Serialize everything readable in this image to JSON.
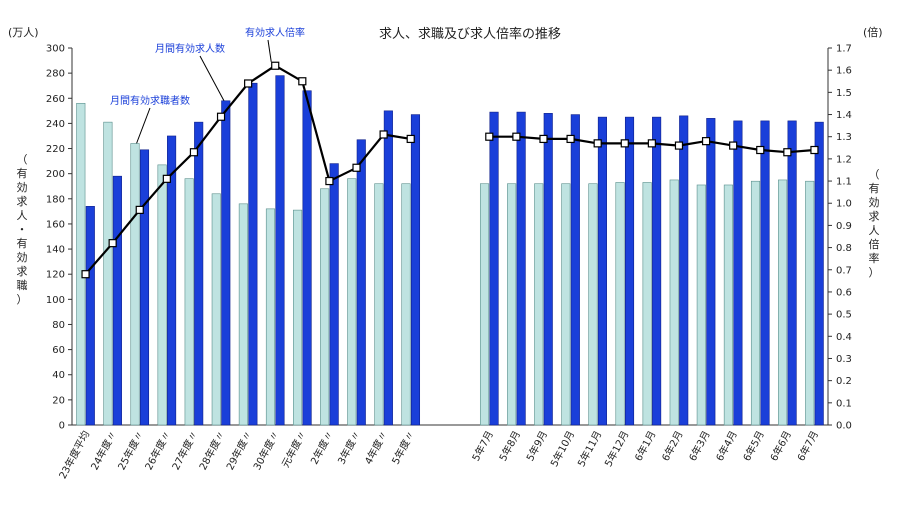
{
  "chart_data": {
    "type": "bar",
    "title": "求人、求職及び求人倍率の推移",
    "left_unit": "(万人)",
    "right_unit": "(倍)",
    "ylabel": "（有効求人・有効求職）",
    "y2label": "（有効求人倍率）",
    "ylim": [
      0,
      300
    ],
    "y_ticks": [
      0,
      20,
      40,
      60,
      80,
      100,
      120,
      140,
      160,
      180,
      200,
      220,
      240,
      260,
      280,
      300
    ],
    "y2lim": [
      0.0,
      1.7
    ],
    "y2_ticks": [
      "0.0",
      "0.1",
      "0.2",
      "0.3",
      "0.4",
      "0.5",
      "0.6",
      "0.7",
      "0.8",
      "0.9",
      "1.0",
      "1.1",
      "1.2",
      "1.3",
      "1.4",
      "1.5",
      "1.6",
      "1.7"
    ],
    "grid": false,
    "categories": [
      "23年度平均",
      "24年度〃",
      "25年度〃",
      "26年度〃",
      "27年度〃",
      "28年度〃",
      "29年度〃",
      "30年度〃",
      "元年度〃",
      "2年度〃",
      "3年度〃",
      "4年度〃",
      "5年度〃",
      "5年7月",
      "5年8月",
      "5年9月",
      "5年10月",
      "5年11月",
      "5年12月",
      "6年1月",
      "6年2月",
      "6年3月",
      "6年4月",
      "6年5月",
      "6年6月",
      "6年7月"
    ],
    "series": [
      {
        "name": "月間有効求職者数",
        "axis": "left",
        "color": "#bfe3e1",
        "values": [
          256,
          241,
          224,
          207,
          196,
          184,
          176,
          172,
          171,
          188,
          196,
          192,
          192,
          192,
          192,
          192,
          192,
          192,
          193,
          193,
          195,
          191,
          191,
          194,
          195,
          194
        ]
      },
      {
        "name": "月間有効求人数",
        "axis": "left",
        "color": "#1a3fd9",
        "values": [
          174,
          198,
          219,
          230,
          241,
          258,
          272,
          278,
          266,
          208,
          227,
          250,
          247,
          249,
          249,
          248,
          247,
          245,
          245,
          245,
          246,
          244,
          242,
          242,
          242,
          241
        ]
      },
      {
        "name": "有効求人倍率",
        "axis": "right",
        "color": "#000000",
        "values": [
          0.68,
          0.82,
          0.97,
          1.11,
          1.23,
          1.39,
          1.54,
          1.62,
          1.55,
          1.1,
          1.16,
          1.31,
          1.29,
          1.3,
          1.3,
          1.29,
          1.29,
          1.27,
          1.27,
          1.27,
          1.26,
          1.28,
          1.26,
          1.24,
          1.23,
          1.24
        ]
      }
    ],
    "annotations": [
      "有効求人倍率",
      "月間有効求人数",
      "月間有効求職者数"
    ]
  }
}
